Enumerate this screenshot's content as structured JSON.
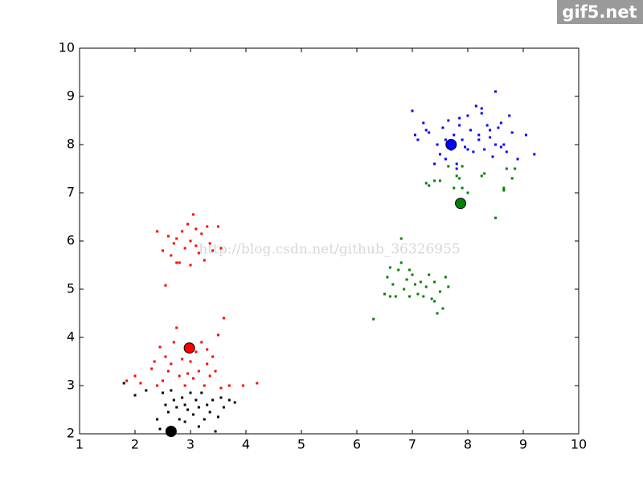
{
  "chart_data": {
    "type": "scatter",
    "xlim": [
      1,
      10
    ],
    "ylim": [
      2,
      10
    ],
    "xticks": [
      1,
      2,
      3,
      4,
      5,
      6,
      7,
      8,
      9,
      10
    ],
    "yticks": [
      2,
      3,
      4,
      5,
      6,
      7,
      8,
      9,
      10
    ],
    "grid": false,
    "series": [
      {
        "color": "#0000ff",
        "x": [
          7.0,
          7.05,
          7.1,
          7.2,
          7.25,
          7.3,
          7.4,
          7.45,
          7.5,
          7.55,
          7.6,
          7.65,
          7.7,
          7.75,
          7.8,
          7.85,
          7.9,
          7.95,
          8.0,
          8.05,
          8.1,
          8.15,
          8.2,
          8.25,
          8.3,
          8.35,
          8.4,
          8.45,
          8.5,
          8.55,
          8.6,
          8.65,
          8.7,
          8.75,
          8.8,
          8.9,
          9.05,
          9.2,
          7.6,
          7.8,
          8.0,
          8.2,
          8.4,
          8.6,
          7.85,
          8.25,
          8.5
        ],
        "y": [
          8.7,
          8.2,
          8.1,
          8.45,
          8.3,
          8.25,
          7.6,
          8.0,
          7.8,
          8.35,
          7.7,
          8.5,
          7.9,
          8.2,
          7.6,
          8.55,
          8.1,
          7.95,
          8.6,
          8.3,
          7.85,
          8.8,
          8.2,
          8.75,
          7.9,
          8.4,
          8.15,
          7.75,
          9.1,
          8.35,
          8.45,
          8.0,
          7.85,
          8.6,
          8.25,
          7.7,
          8.2,
          7.8,
          8.1,
          7.5,
          7.9,
          8.1,
          8.3,
          7.95,
          8.4,
          8.65,
          8.0
        ],
        "centroid": [
          7.7,
          8.0
        ]
      },
      {
        "color": "#008000",
        "x": [
          7.25,
          7.3,
          7.4,
          7.5,
          7.65,
          7.75,
          7.8,
          7.85,
          7.9,
          8.0,
          8.25,
          8.3,
          8.5,
          8.65,
          8.65,
          8.7,
          8.8,
          8.85,
          7.9,
          6.3,
          6.5,
          6.55,
          6.6,
          6.65,
          6.7,
          6.75,
          6.8,
          6.8,
          6.85,
          6.9,
          6.95,
          7.0,
          7.05,
          7.1,
          7.2,
          7.25,
          7.3,
          7.35,
          7.4,
          7.45,
          7.5,
          7.55,
          7.6,
          7.65,
          6.6,
          6.95,
          7.15,
          7.4
        ],
        "y": [
          7.2,
          7.15,
          7.25,
          7.25,
          7.55,
          7.1,
          7.35,
          7.3,
          7.1,
          7.0,
          7.35,
          7.4,
          6.48,
          7.1,
          7.05,
          7.5,
          7.3,
          7.5,
          7.55,
          4.38,
          4.9,
          5.25,
          5.45,
          5.1,
          4.85,
          5.4,
          6.05,
          5.55,
          5.0,
          5.2,
          4.85,
          5.3,
          5.1,
          4.9,
          4.85,
          5.05,
          5.3,
          4.8,
          5.15,
          4.5,
          4.95,
          4.6,
          5.25,
          5.05,
          4.85,
          5.4,
          5.15,
          4.75
        ],
        "centroid": [
          7.87,
          6.78
        ]
      },
      {
        "color": "#ff0000",
        "x": [
          2.4,
          2.5,
          2.6,
          2.65,
          2.7,
          2.75,
          2.8,
          2.85,
          2.9,
          2.95,
          3.0,
          3.0,
          3.05,
          3.1,
          3.1,
          3.15,
          3.2,
          3.25,
          3.3,
          3.35,
          3.4,
          3.5,
          3.55,
          2.55,
          2.75,
          1.85,
          2.0,
          2.1,
          2.3,
          2.35,
          2.45,
          2.5,
          2.55,
          2.6,
          2.65,
          2.7,
          2.75,
          2.8,
          2.85,
          2.9,
          2.95,
          3.0,
          3.05,
          3.1,
          3.15,
          3.2,
          3.25,
          3.3,
          3.35,
          3.4,
          3.45,
          3.5,
          3.55,
          3.6,
          3.7,
          3.95,
          4.2,
          2.4,
          3.0,
          3.3
        ],
        "y": [
          6.2,
          5.8,
          6.1,
          5.7,
          5.95,
          6.05,
          5.55,
          6.2,
          5.85,
          6.35,
          5.5,
          6.0,
          6.55,
          5.9,
          6.25,
          5.75,
          6.15,
          5.6,
          6.3,
          5.95,
          5.8,
          6.3,
          5.85,
          5.08,
          5.55,
          3.1,
          3.2,
          3.05,
          3.35,
          3.5,
          3.8,
          3.1,
          3.6,
          3.3,
          3.45,
          3.9,
          4.2,
          3.2,
          3.55,
          3.0,
          3.25,
          3.5,
          3.15,
          3.7,
          3.3,
          3.9,
          3.0,
          3.45,
          3.2,
          3.6,
          3.3,
          4.05,
          2.95,
          4.4,
          3.0,
          3.0,
          3.05,
          3.0,
          3.85,
          3.75
        ],
        "centroid": [
          2.98,
          3.78
        ]
      },
      {
        "color": "#000000",
        "x": [
          1.8,
          2.0,
          2.2,
          2.4,
          2.5,
          2.55,
          2.6,
          2.65,
          2.7,
          2.75,
          2.8,
          2.85,
          2.9,
          2.95,
          3.0,
          3.05,
          3.1,
          3.15,
          3.2,
          3.25,
          3.3,
          3.35,
          3.4,
          3.45,
          3.5,
          3.55,
          3.6,
          3.7,
          3.8,
          2.45,
          2.9,
          3.15
        ],
        "y": [
          3.05,
          2.8,
          2.9,
          2.3,
          2.85,
          2.6,
          2.45,
          2.9,
          2.7,
          2.55,
          2.3,
          2.75,
          2.6,
          2.5,
          2.85,
          2.4,
          2.7,
          2.55,
          2.85,
          2.3,
          2.6,
          2.45,
          2.7,
          2.05,
          2.35,
          2.75,
          2.55,
          2.7,
          2.65,
          2.1,
          2.25,
          2.15
        ],
        "centroid": [
          2.65,
          2.05
        ]
      }
    ]
  },
  "watermarks": {
    "corner": "gif5.net",
    "center": "http://blog.csdn.net/github_36326955"
  }
}
